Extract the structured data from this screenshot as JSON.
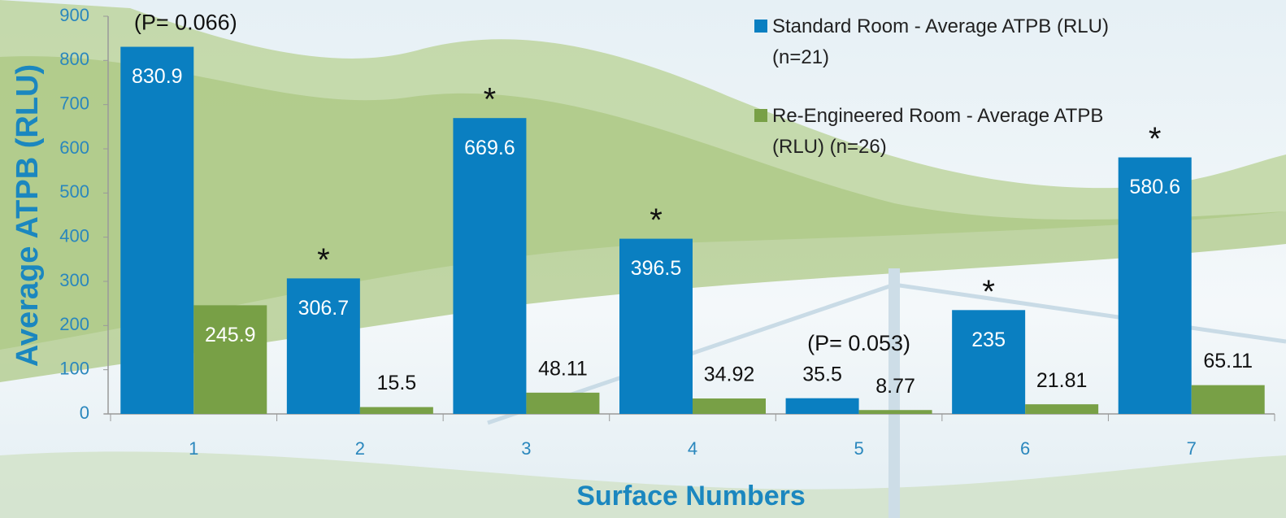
{
  "chart_data": {
    "type": "bar",
    "ylabel": "Average ATPB (RLU)",
    "xlabel": "Surface Numbers",
    "categories": [
      "1",
      "2",
      "3",
      "4",
      "5",
      "6",
      "7"
    ],
    "series": [
      {
        "name": "Standard Room - Average ATPB (RLU) (n=21)",
        "color": "#0a7fc1",
        "values": [
          830.9,
          306.7,
          669.6,
          396.5,
          35.5,
          235,
          580.6
        ]
      },
      {
        "name": "Re-Engineered Room - Average ATPB (RLU) (n=26)",
        "color": "#78a046",
        "values": [
          245.9,
          15.5,
          48.11,
          34.92,
          8.77,
          21.81,
          65.11
        ]
      }
    ],
    "annotations": [
      "(P= 0.066)",
      "*",
      "*",
      "*",
      "(P= 0.053)",
      "*",
      "*"
    ],
    "ylim": [
      0,
      900
    ],
    "yticks": [
      0,
      100,
      200,
      300,
      400,
      500,
      600,
      700,
      800,
      900
    ]
  }
}
